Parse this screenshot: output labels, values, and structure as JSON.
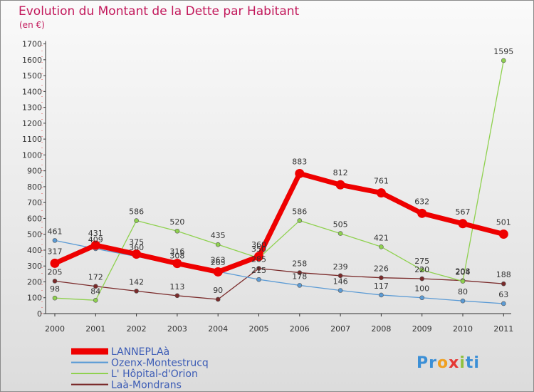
{
  "chart_data": {
    "type": "line",
    "title": "Evolution du Montant de la Dette par Habitant",
    "subtitle": "(en €)",
    "xlabel": "",
    "ylabel": "",
    "categories": [
      "2000",
      "2001",
      "2002",
      "2003",
      "2004",
      "2005",
      "2006",
      "2007",
      "2008",
      "2009",
      "2010",
      "2011"
    ],
    "yticks": [
      0,
      100,
      200,
      300,
      400,
      500,
      600,
      700,
      800,
      900,
      1000,
      1100,
      1200,
      1300,
      1400,
      1500,
      1600,
      1700
    ],
    "ylim": [
      0,
      1700
    ],
    "grid": false,
    "legend_position": "bottom-left",
    "series": [
      {
        "name": "LANNEPLAà",
        "color": "#ee0000",
        "values": [
          317,
          431,
          375,
          316,
          263,
          360,
          883,
          812,
          761,
          632,
          567,
          501
        ],
        "labels": [
          "317",
          "431",
          "375",
          "316",
          "263",
          "360",
          "883",
          "812",
          "761",
          "632",
          "567",
          "501"
        ]
      },
      {
        "name": "Ozenx-Montestrucq",
        "color": "#5b9bd5",
        "values": [
          461,
          409,
          360,
          308,
          265,
          215,
          178,
          146,
          117,
          100,
          80,
          63
        ],
        "labels": [
          "461",
          "409",
          "360",
          "308",
          "265",
          "215",
          "178",
          "146",
          "117",
          "100",
          "80",
          "63"
        ]
      },
      {
        "name": "L' Hôpital-d'Orion",
        "color": "#8fd14f",
        "values": [
          98,
          84,
          586,
          520,
          435,
          350,
          586,
          505,
          421,
          275,
          204,
          1595
        ],
        "labels": [
          "98",
          "84",
          "586",
          "520",
          "435",
          "350",
          "586",
          "505",
          "421",
          "275",
          "204",
          "1595"
        ]
      },
      {
        "name": "Laà-Mondrans",
        "color": "#7a2a2a",
        "values": [
          205,
          172,
          142,
          113,
          90,
          285,
          258,
          239,
          226,
          220,
          208,
          188
        ],
        "labels": [
          "205",
          "172",
          "142",
          "113",
          "90",
          "285",
          "258",
          "239",
          "226",
          "220",
          "208",
          "188"
        ]
      }
    ]
  },
  "branding": {
    "logo_parts": [
      "Pr",
      "o",
      "x",
      "i",
      "ti"
    ],
    "logo_colors": [
      "#3b8fd6",
      "#f0a020",
      "#e53935",
      "#8fc13f",
      "#3b8fd6"
    ]
  }
}
